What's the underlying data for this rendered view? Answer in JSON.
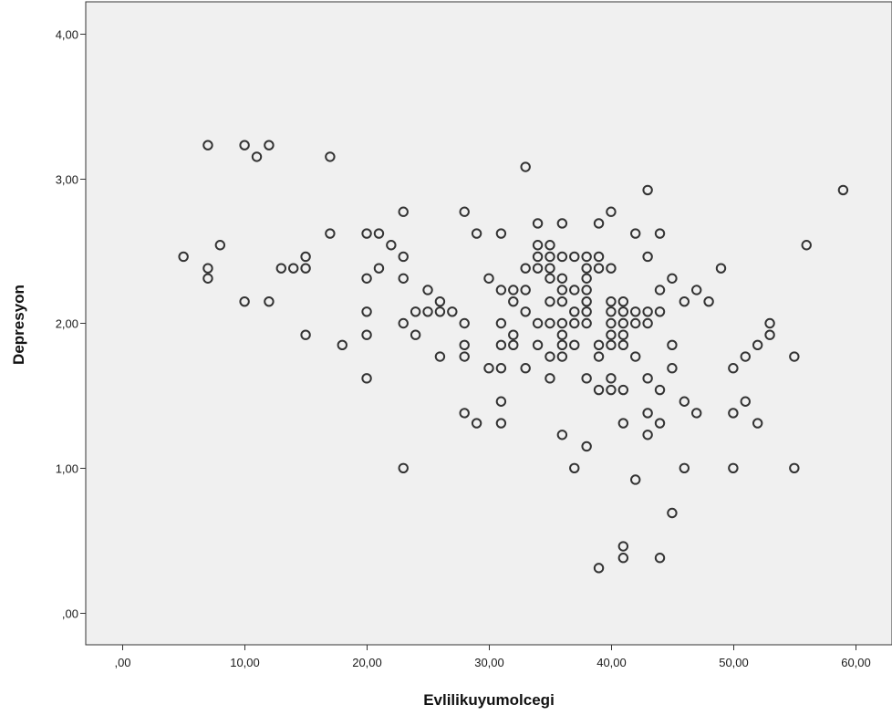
{
  "chart_data": {
    "type": "scatter",
    "title": "",
    "xlabel": "Evlilikuyumolcegi",
    "ylabel": "Depresyon",
    "xlim": [
      -3,
      63
    ],
    "ylim": [
      -0.22,
      4.22
    ],
    "x_ticks": [
      0,
      10,
      20,
      30,
      40,
      50,
      60
    ],
    "x_tick_labels": [
      ",00",
      "10,00",
      "20,00",
      "30,00",
      "40,00",
      "50,00",
      "60,00"
    ],
    "y_ticks": [
      0,
      1,
      2,
      3,
      4
    ],
    "y_tick_labels": [
      ",00",
      "1,00",
      "2,00",
      "3,00",
      "4,00"
    ],
    "grid": false,
    "legend": "none",
    "colors": {
      "plot_background": "#f0f0f0",
      "marker_stroke": "#333333",
      "axis": "#333333"
    },
    "series": [
      {
        "marker": "open-circle",
        "points": [
          [
            5,
            2.46
          ],
          [
            7,
            3.23
          ],
          [
            7,
            2.38
          ],
          [
            7,
            2.31
          ],
          [
            8,
            2.54
          ],
          [
            10,
            3.23
          ],
          [
            10,
            2.15
          ],
          [
            11,
            3.15
          ],
          [
            12,
            3.23
          ],
          [
            12,
            2.15
          ],
          [
            13,
            2.38
          ],
          [
            14,
            2.38
          ],
          [
            15,
            2.46
          ],
          [
            15,
            2.38
          ],
          [
            15,
            1.92
          ],
          [
            17,
            3.15
          ],
          [
            17,
            2.62
          ],
          [
            18,
            1.85
          ],
          [
            20,
            2.62
          ],
          [
            20,
            2.31
          ],
          [
            20,
            2.08
          ],
          [
            20,
            1.92
          ],
          [
            20,
            1.62
          ],
          [
            21,
            2.62
          ],
          [
            21,
            2.38
          ],
          [
            22,
            2.54
          ],
          [
            23,
            2.77
          ],
          [
            23,
            2.46
          ],
          [
            23,
            2.31
          ],
          [
            23,
            2.0
          ],
          [
            23,
            1.0
          ],
          [
            24,
            2.08
          ],
          [
            24,
            1.92
          ],
          [
            25,
            2.23
          ],
          [
            25,
            2.08
          ],
          [
            26,
            2.15
          ],
          [
            26,
            2.08
          ],
          [
            26,
            1.77
          ],
          [
            27,
            2.08
          ],
          [
            28,
            2.77
          ],
          [
            28,
            2.0
          ],
          [
            28,
            1.85
          ],
          [
            28,
            1.77
          ],
          [
            28,
            1.38
          ],
          [
            29,
            2.62
          ],
          [
            29,
            1.31
          ],
          [
            30,
            2.31
          ],
          [
            30,
            1.69
          ],
          [
            31,
            2.62
          ],
          [
            31,
            2.23
          ],
          [
            31,
            2.0
          ],
          [
            31,
            1.85
          ],
          [
            31,
            1.69
          ],
          [
            31,
            1.46
          ],
          [
            31,
            1.31
          ],
          [
            32,
            2.23
          ],
          [
            32,
            2.15
          ],
          [
            32,
            1.92
          ],
          [
            32,
            1.85
          ],
          [
            33,
            3.08
          ],
          [
            33,
            2.38
          ],
          [
            33,
            2.23
          ],
          [
            33,
            2.08
          ],
          [
            33,
            1.69
          ],
          [
            34,
            2.69
          ],
          [
            34,
            2.54
          ],
          [
            34,
            2.46
          ],
          [
            34,
            2.38
          ],
          [
            34,
            2.0
          ],
          [
            34,
            1.85
          ],
          [
            35,
            2.54
          ],
          [
            35,
            2.46
          ],
          [
            35,
            2.38
          ],
          [
            35,
            2.31
          ],
          [
            35,
            2.15
          ],
          [
            35,
            2.0
          ],
          [
            35,
            1.77
          ],
          [
            35,
            1.62
          ],
          [
            36,
            2.69
          ],
          [
            36,
            2.46
          ],
          [
            36,
            2.31
          ],
          [
            36,
            2.23
          ],
          [
            36,
            2.15
          ],
          [
            36,
            2.0
          ],
          [
            36,
            1.92
          ],
          [
            36,
            1.85
          ],
          [
            36,
            1.77
          ],
          [
            36,
            1.23
          ],
          [
            37,
            2.46
          ],
          [
            37,
            2.23
          ],
          [
            37,
            2.08
          ],
          [
            37,
            2.0
          ],
          [
            37,
            1.85
          ],
          [
            37,
            1.0
          ],
          [
            38,
            2.46
          ],
          [
            38,
            2.38
          ],
          [
            38,
            2.31
          ],
          [
            38,
            2.23
          ],
          [
            38,
            2.15
          ],
          [
            38,
            2.08
          ],
          [
            38,
            2.0
          ],
          [
            38,
            1.62
          ],
          [
            38,
            1.15
          ],
          [
            39,
            2.69
          ],
          [
            39,
            2.46
          ],
          [
            39,
            2.38
          ],
          [
            39,
            1.85
          ],
          [
            39,
            1.77
          ],
          [
            39,
            1.54
          ],
          [
            39,
            0.31
          ],
          [
            40,
            2.77
          ],
          [
            40,
            2.38
          ],
          [
            40,
            2.15
          ],
          [
            40,
            2.08
          ],
          [
            40,
            2.0
          ],
          [
            40,
            1.92
          ],
          [
            40,
            1.85
          ],
          [
            40,
            1.62
          ],
          [
            40,
            1.54
          ],
          [
            41,
            2.15
          ],
          [
            41,
            2.08
          ],
          [
            41,
            2.0
          ],
          [
            41,
            1.92
          ],
          [
            41,
            1.85
          ],
          [
            41,
            1.54
          ],
          [
            41,
            1.31
          ],
          [
            41,
            0.46
          ],
          [
            41,
            0.38
          ],
          [
            42,
            2.62
          ],
          [
            42,
            2.08
          ],
          [
            42,
            2.0
          ],
          [
            42,
            1.77
          ],
          [
            42,
            0.92
          ],
          [
            43,
            2.92
          ],
          [
            43,
            2.46
          ],
          [
            43,
            2.08
          ],
          [
            43,
            2.0
          ],
          [
            43,
            1.62
          ],
          [
            43,
            1.38
          ],
          [
            43,
            1.23
          ],
          [
            44,
            2.62
          ],
          [
            44,
            2.23
          ],
          [
            44,
            2.08
          ],
          [
            44,
            1.54
          ],
          [
            44,
            1.31
          ],
          [
            44,
            0.38
          ],
          [
            45,
            2.31
          ],
          [
            45,
            1.85
          ],
          [
            45,
            1.69
          ],
          [
            45,
            0.69
          ],
          [
            46,
            2.15
          ],
          [
            46,
            1.46
          ],
          [
            46,
            1.0
          ],
          [
            47,
            2.23
          ],
          [
            47,
            1.38
          ],
          [
            48,
            2.15
          ],
          [
            49,
            2.38
          ],
          [
            50,
            1.69
          ],
          [
            50,
            1.38
          ],
          [
            50,
            1.0
          ],
          [
            51,
            1.77
          ],
          [
            51,
            1.46
          ],
          [
            52,
            1.85
          ],
          [
            52,
            1.31
          ],
          [
            53,
            2.0
          ],
          [
            53,
            1.92
          ],
          [
            55,
            1.77
          ],
          [
            55,
            1.0
          ],
          [
            56,
            2.54
          ],
          [
            59,
            2.92
          ]
        ]
      }
    ]
  }
}
